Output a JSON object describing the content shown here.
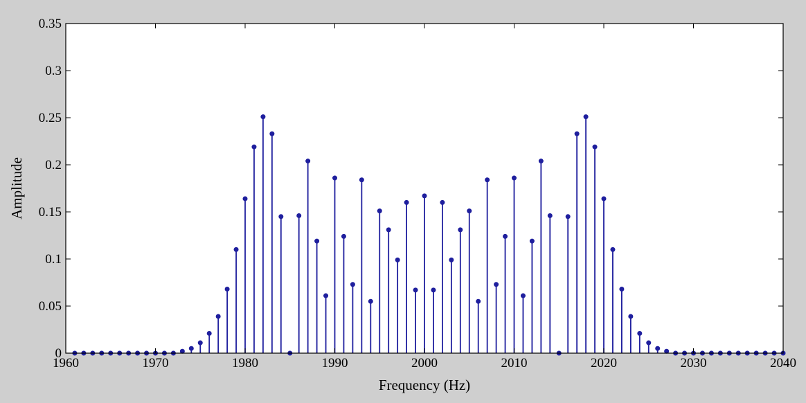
{
  "chart_data": {
    "type": "stem",
    "title": "",
    "xlabel": "Frequency (Hz)",
    "ylabel": "Amplitude",
    "xlim": [
      1960,
      2040
    ],
    "ylim": [
      0,
      0.35
    ],
    "x_ticks": [
      1960,
      1970,
      1980,
      1990,
      2000,
      2010,
      2020,
      2030,
      2040
    ],
    "y_ticks": [
      0,
      0.05,
      0.1,
      0.15,
      0.2,
      0.25,
      0.3,
      0.35
    ],
    "x_tick_labels": [
      "1960",
      "1970",
      "1980",
      "1990",
      "2000",
      "2010",
      "2020",
      "2030",
      "2040"
    ],
    "y_tick_labels": [
      "0",
      "0.05",
      "0.1",
      "0.15",
      "0.2",
      "0.25",
      "0.3",
      "0.35"
    ],
    "grid": false,
    "color": "#1f1f9e",
    "x": [
      1961,
      1962,
      1963,
      1964,
      1965,
      1966,
      1967,
      1968,
      1969,
      1970,
      1971,
      1972,
      1973,
      1974,
      1975,
      1976,
      1977,
      1978,
      1979,
      1980,
      1981,
      1982,
      1983,
      1984,
      1985,
      1986,
      1987,
      1988,
      1989,
      1990,
      1991,
      1992,
      1993,
      1994,
      1995,
      1996,
      1997,
      1998,
      1999,
      2000,
      2001,
      2002,
      2003,
      2004,
      2005,
      2006,
      2007,
      2008,
      2009,
      2010,
      2011,
      2012,
      2013,
      2014,
      2015,
      2016,
      2017,
      2018,
      2019,
      2020,
      2021,
      2022,
      2023,
      2024,
      2025,
      2026,
      2027,
      2028,
      2029,
      2030,
      2031,
      2032,
      2033,
      2034,
      2035,
      2036,
      2037,
      2038,
      2039,
      2040
    ],
    "y": [
      0,
      0,
      0,
      0,
      0,
      0,
      0,
      0,
      0,
      0,
      0,
      0,
      0.002,
      0.005,
      0.011,
      0.021,
      0.039,
      0.068,
      0.11,
      0.164,
      0.219,
      0.251,
      0.233,
      0.145,
      0,
      0.146,
      0.204,
      0.119,
      0.061,
      0.186,
      0.124,
      0.073,
      0.184,
      0.055,
      0.151,
      0.131,
      0.099,
      0.16,
      0.067,
      0.167,
      0.067,
      0.16,
      0.099,
      0.131,
      0.151,
      0.055,
      0.184,
      0.073,
      0.124,
      0.186,
      0.061,
      0.119,
      0.204,
      0.146,
      0,
      0.145,
      0.233,
      0.251,
      0.219,
      0.164,
      0.11,
      0.068,
      0.039,
      0.021,
      0.011,
      0.005,
      0.002,
      0,
      0,
      0,
      0,
      0,
      0,
      0,
      0,
      0,
      0,
      0,
      0,
      0
    ]
  }
}
